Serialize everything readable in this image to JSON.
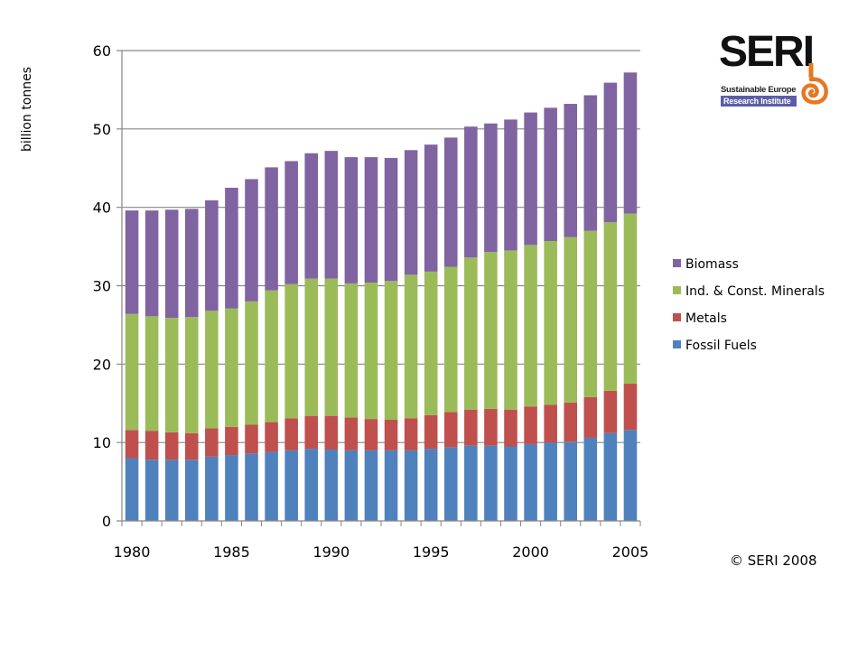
{
  "chart_data": {
    "type": "bar",
    "stacked": true,
    "title": "",
    "xlabel": "",
    "ylabel": "billion tonnes",
    "ylim": [
      0,
      60
    ],
    "yticks": [
      0,
      10,
      20,
      30,
      40,
      50,
      60
    ],
    "ytick_labels": [
      "0",
      "10",
      "20",
      "30",
      "40",
      "50",
      "60"
    ],
    "xtick_labels": [
      "1980",
      "1985",
      "1990",
      "1995",
      "2000",
      "2005"
    ],
    "grid": "horizontal",
    "legend_position": "right",
    "categories": [
      "1980",
      "1981",
      "1982",
      "1983",
      "1984",
      "1985",
      "1986",
      "1987",
      "1988",
      "1989",
      "1990",
      "1991",
      "1992",
      "1993",
      "1994",
      "1995",
      "1996",
      "1997",
      "1998",
      "1999",
      "2000",
      "2001",
      "2002",
      "2003",
      "2004",
      "2005"
    ],
    "series": [
      {
        "name": "Fossil Fuels",
        "color": "#4f81bd",
        "values": [
          8.0,
          7.8,
          7.8,
          7.8,
          8.2,
          8.4,
          8.6,
          8.8,
          9.0,
          9.2,
          9.1,
          9.0,
          9.0,
          9.0,
          9.0,
          9.2,
          9.4,
          9.6,
          9.6,
          9.5,
          9.8,
          10.0,
          10.1,
          10.6,
          11.2,
          11.6
        ]
      },
      {
        "name": "Metals",
        "color": "#c0504d",
        "values": [
          3.6,
          3.7,
          3.5,
          3.4,
          3.6,
          3.6,
          3.7,
          3.8,
          4.1,
          4.2,
          4.3,
          4.2,
          4.0,
          3.9,
          4.1,
          4.3,
          4.5,
          4.6,
          4.7,
          4.7,
          4.8,
          4.8,
          5.0,
          5.2,
          5.4,
          5.9
        ]
      },
      {
        "name": "Ind. & Const. Minerals",
        "color": "#9bbb59",
        "values": [
          14.8,
          14.6,
          14.6,
          14.8,
          15.0,
          15.1,
          15.7,
          16.8,
          17.1,
          17.5,
          17.5,
          17.1,
          17.4,
          17.7,
          18.3,
          18.3,
          18.5,
          19.4,
          20.0,
          20.3,
          20.6,
          20.9,
          21.1,
          21.2,
          21.5,
          21.7
        ]
      },
      {
        "name": "Biomass",
        "color": "#8064a2",
        "values": [
          13.2,
          13.5,
          13.8,
          13.8,
          14.1,
          15.4,
          15.6,
          15.7,
          15.7,
          16.0,
          16.3,
          16.1,
          16.0,
          15.7,
          15.9,
          16.2,
          16.5,
          16.7,
          16.4,
          16.7,
          16.9,
          17.0,
          17.0,
          17.3,
          17.8,
          18.0
        ]
      }
    ],
    "legend": [
      "Biomass",
      "Ind. & Const. Minerals",
      "Metals",
      "Fossil Fuels"
    ]
  },
  "logo": {
    "title": "SERI",
    "line1": "Sustainable Europe",
    "line2": "Research Institute"
  },
  "copyright": "© SERI 2008"
}
